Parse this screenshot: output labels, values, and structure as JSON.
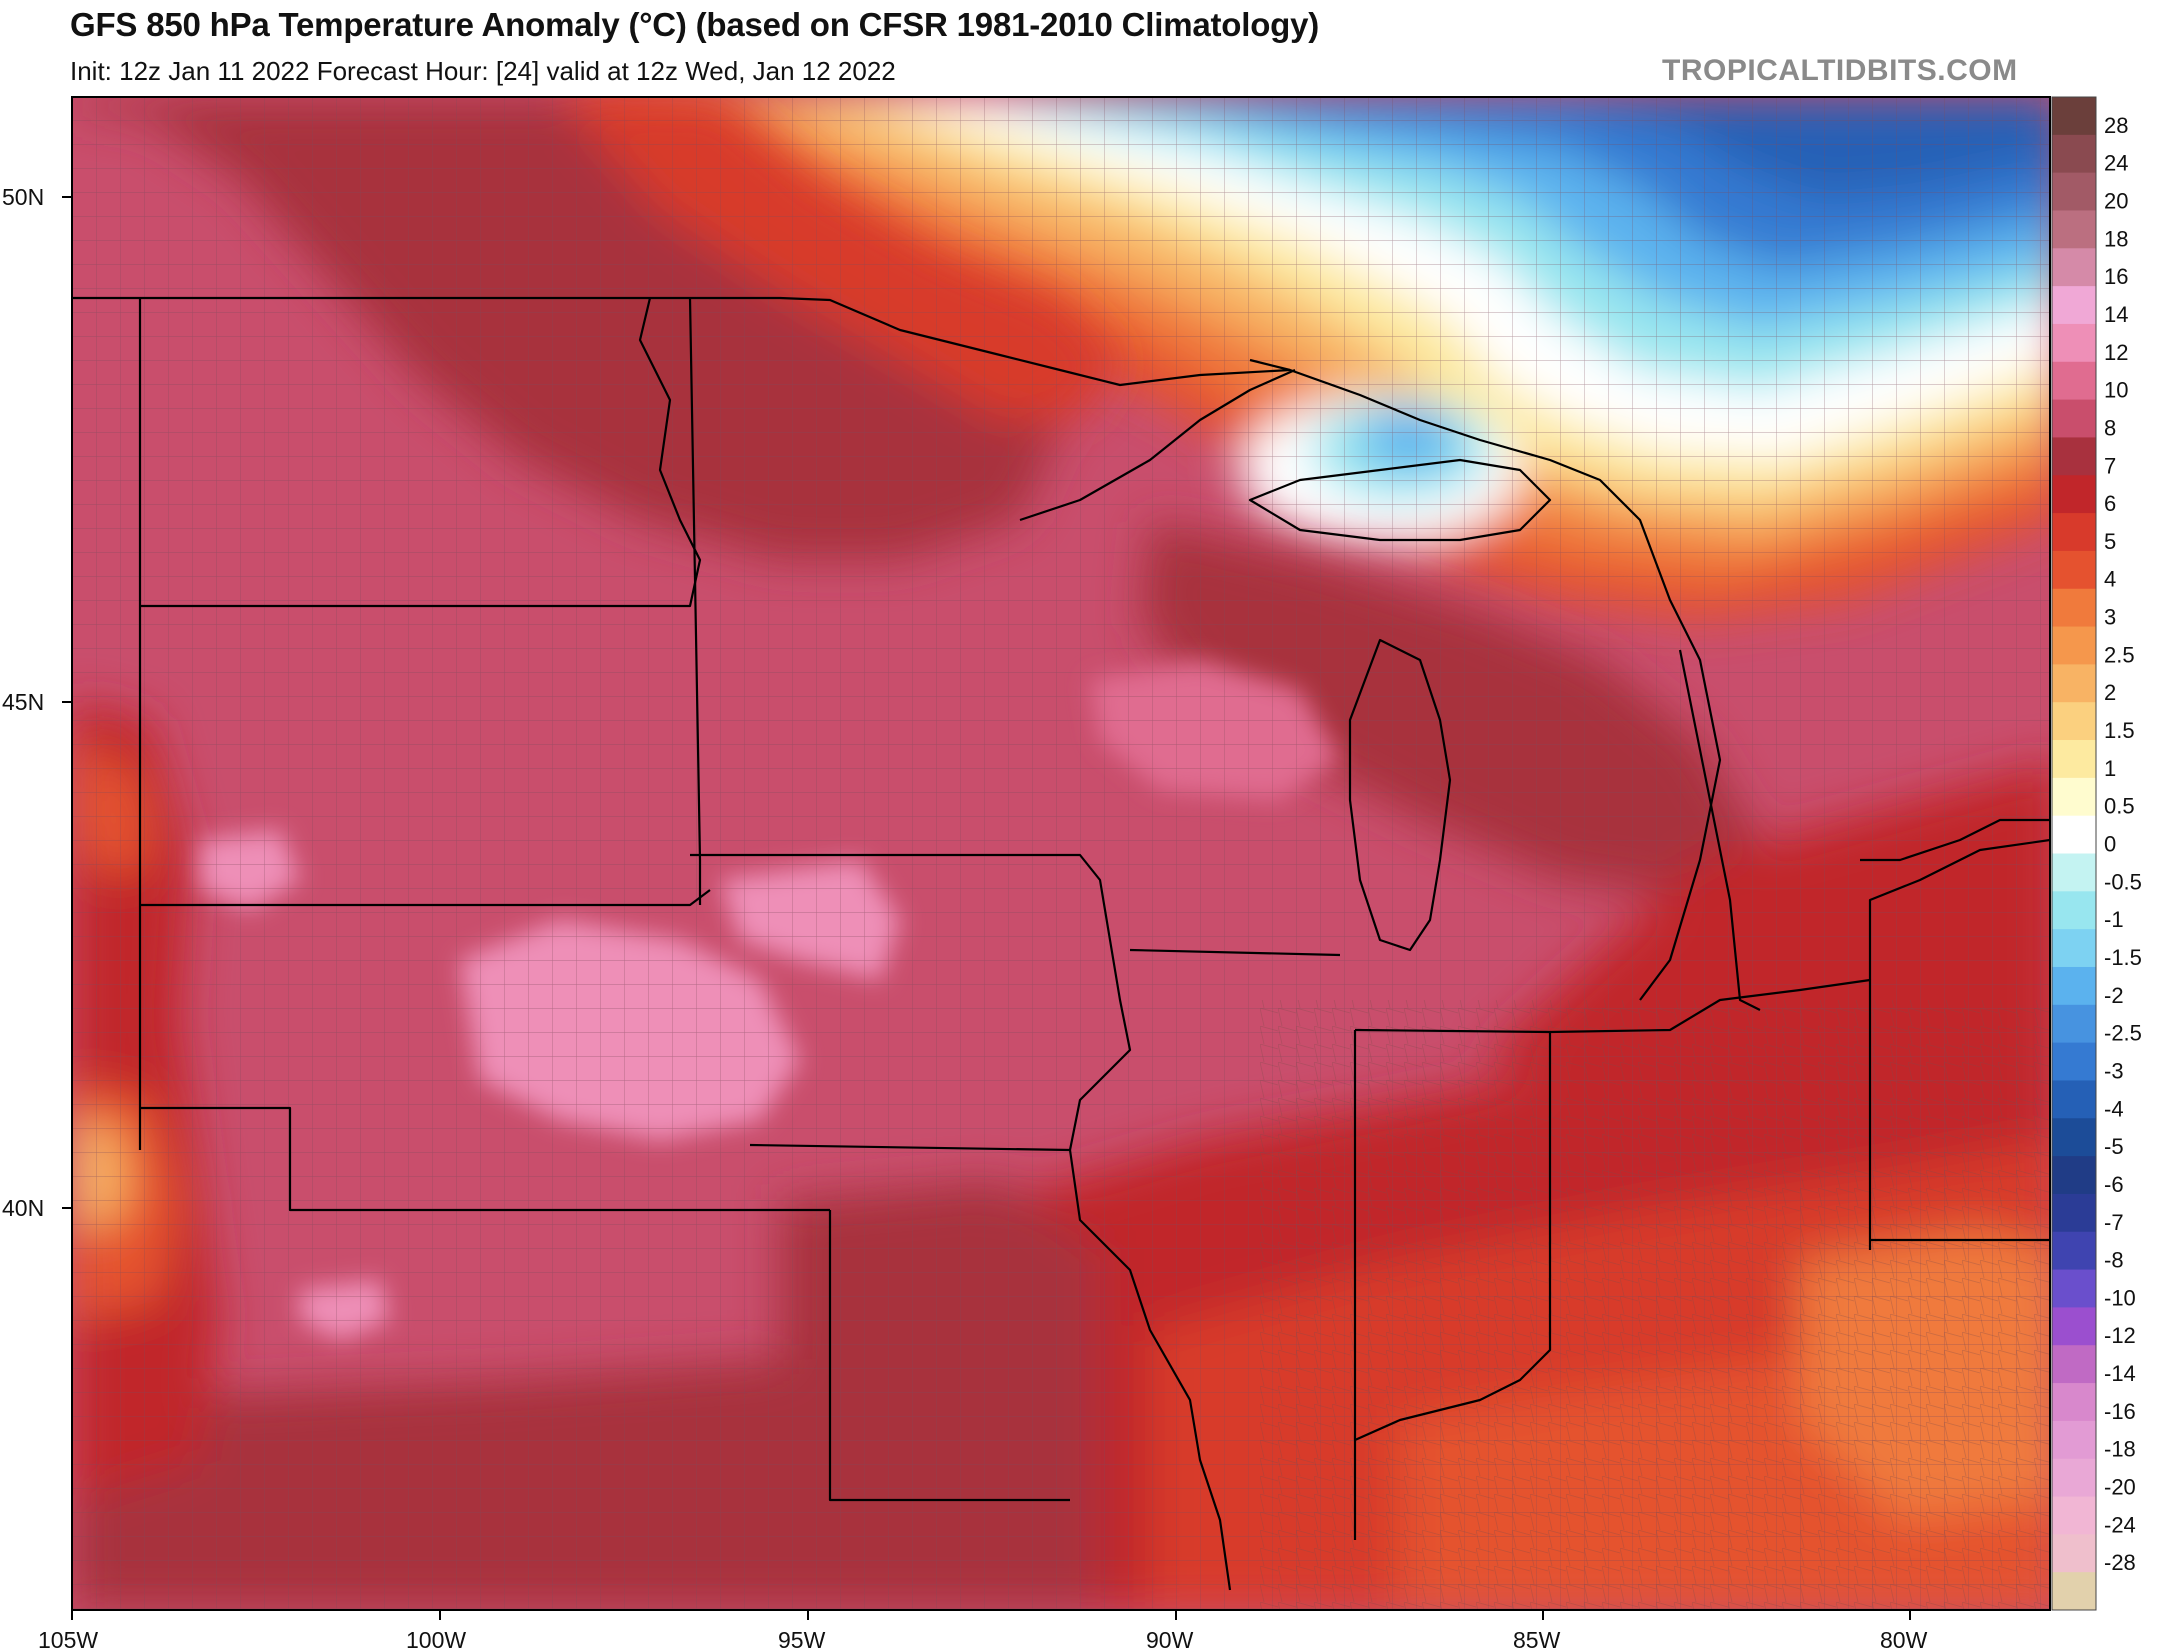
{
  "header": {
    "title": "GFS 850 hPa Temperature Anomaly (°C) (based on CFSR 1981-2010 Climatology)",
    "subtitle": "Init: 12z Jan 11 2022   Forecast Hour: [24]   valid at 12z Wed, Jan 12 2022",
    "brand": "TROPICALTIDBITS.COM"
  },
  "map": {
    "longitude_labels": [
      "105W",
      "100W",
      "95W",
      "90W",
      "85W",
      "80W"
    ],
    "latitude_labels": [
      "50N",
      "45N",
      "40N"
    ]
  },
  "colorbar": {
    "units": "°C",
    "levels": [
      {
        "label": "28",
        "color": "#6b3f3b"
      },
      {
        "label": "24",
        "color": "#8a4a50"
      },
      {
        "label": "20",
        "color": "#a25a66"
      },
      {
        "label": "18",
        "color": "#bb6f80"
      },
      {
        "label": "16",
        "color": "#d58aa8"
      },
      {
        "label": "14",
        "color": "#f0a8d6"
      },
      {
        "label": "12",
        "color": "#ee8fb7"
      },
      {
        "label": "10",
        "color": "#e06c90"
      },
      {
        "label": "8",
        "color": "#c94e6c"
      },
      {
        "label": "7",
        "color": "#a8313e"
      },
      {
        "label": "6",
        "color": "#c1262a"
      },
      {
        "label": "5",
        "color": "#d83a2b"
      },
      {
        "label": "4",
        "color": "#e5522f"
      },
      {
        "label": "3",
        "color": "#f07a3c"
      },
      {
        "label": "2.5",
        "color": "#f5974c"
      },
      {
        "label": "2",
        "color": "#f8b364"
      },
      {
        "label": "1.5",
        "color": "#fbd07f"
      },
      {
        "label": "1",
        "color": "#fdeaa0"
      },
      {
        "label": "0.5",
        "color": "#fffccf"
      },
      {
        "label": "0",
        "color": "#ffffff"
      },
      {
        "label": "-0.5",
        "color": "#c4f3f2"
      },
      {
        "label": "-1",
        "color": "#98e6ef"
      },
      {
        "label": "-1.5",
        "color": "#7dd2f2"
      },
      {
        "label": "-2",
        "color": "#5bb2ee"
      },
      {
        "label": "-2.5",
        "color": "#4793e0"
      },
      {
        "label": "-3",
        "color": "#357ad2"
      },
      {
        "label": "-4",
        "color": "#2560b6"
      },
      {
        "label": "-5",
        "color": "#1c4c98"
      },
      {
        "label": "-6",
        "color": "#203c86"
      },
      {
        "label": "-7",
        "color": "#2b3c96"
      },
      {
        "label": "-8",
        "color": "#3f44b0"
      },
      {
        "label": "-10",
        "color": "#6a4fcc"
      },
      {
        "label": "-12",
        "color": "#9b4fcf"
      },
      {
        "label": "-14",
        "color": "#c06ac4"
      },
      {
        "label": "-16",
        "color": "#d888cc"
      },
      {
        "label": "-18",
        "color": "#e29bd4"
      },
      {
        "label": "-20",
        "color": "#e9a8d6"
      },
      {
        "label": "-24",
        "color": "#f1b6d4"
      },
      {
        "label": "-28",
        "color": "#efbfcc"
      },
      {
        "label": "",
        "color": "#e2d1ac"
      }
    ]
  },
  "colors": {
    "background_warm": "#c94e6c",
    "state_line": "#000000",
    "county_line": "#7d4a5a",
    "brand_gray": "#8a8a8a"
  }
}
